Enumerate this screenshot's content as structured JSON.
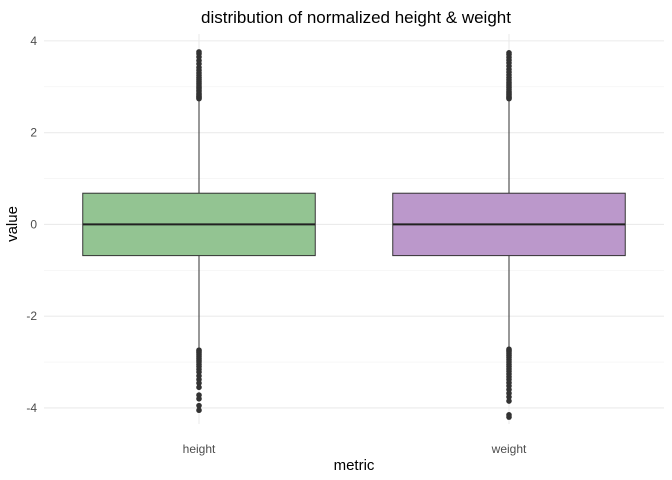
{
  "chart_data": {
    "type": "box",
    "title": "distribution of normalized height & weight",
    "xlabel": "metric",
    "ylabel": "value",
    "ylim": [
      -4.35,
      4.15
    ],
    "y_major_ticks": [
      -4,
      -2,
      0,
      2,
      4
    ],
    "y_tick_labels": [
      "-4",
      "-2",
      "0",
      "2",
      "4"
    ],
    "y_minor_ticks": [
      -3,
      -1,
      1,
      3
    ],
    "grid": true,
    "colors": {
      "height": "#93c492",
      "weight": "#bb98cb",
      "outline": "#333333"
    },
    "series": [
      {
        "category": "height",
        "q1": -0.68,
        "median": 0.0,
        "q3": 0.68,
        "whisker_low": -2.72,
        "whisker_high": 2.72,
        "outliers_high": [
          2.74,
          2.76,
          2.78,
          2.8,
          2.83,
          2.86,
          2.9,
          2.93,
          2.97,
          3.0,
          3.04,
          3.08,
          3.12,
          3.16,
          3.2,
          3.25,
          3.3,
          3.36,
          3.42,
          3.5,
          3.57,
          3.65,
          3.72,
          3.76
        ],
        "outliers_low": [
          -2.74,
          -2.77,
          -2.8,
          -2.84,
          -2.88,
          -2.92,
          -2.96,
          -3.0,
          -3.05,
          -3.1,
          -3.16,
          -3.22,
          -3.3,
          -3.38,
          -3.46,
          -3.55,
          -3.72,
          -3.8,
          -3.95,
          -4.05
        ]
      },
      {
        "category": "weight",
        "q1": -0.68,
        "median": 0.0,
        "q3": 0.68,
        "whisker_low": -2.7,
        "whisker_high": 2.72,
        "outliers_high": [
          2.74,
          2.76,
          2.78,
          2.81,
          2.84,
          2.87,
          2.9,
          2.94,
          2.98,
          3.02,
          3.06,
          3.1,
          3.15,
          3.2,
          3.26,
          3.32,
          3.38,
          3.45,
          3.52,
          3.58,
          3.64,
          3.7,
          3.74
        ],
        "outliers_low": [
          -2.72,
          -2.75,
          -2.78,
          -2.82,
          -2.86,
          -2.9,
          -2.95,
          -3.0,
          -3.05,
          -3.1,
          -3.15,
          -3.2,
          -3.26,
          -3.32,
          -3.38,
          -3.45,
          -3.52,
          -3.6,
          -3.68,
          -3.76,
          -3.85,
          -4.15,
          -4.2
        ]
      }
    ]
  }
}
